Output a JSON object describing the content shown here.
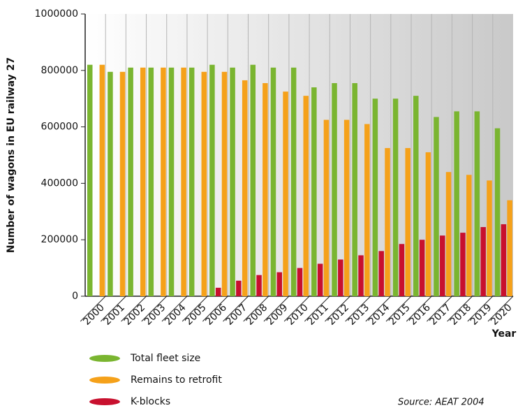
{
  "chart_data": {
    "type": "bar",
    "ylabel": "Number of wagons in EU railway 27",
    "xlabel": "Year",
    "source": "Source: AEAT 2004",
    "categories": [
      "2000",
      "2001",
      "2002",
      "2003",
      "2004",
      "2005",
      "2006",
      "2007",
      "2008",
      "2009",
      "2010",
      "2011",
      "2012",
      "2013",
      "2014",
      "2015",
      "2016",
      "2017",
      "2018",
      "2019",
      "2020"
    ],
    "series": [
      {
        "name": "Total fleet size",
        "color": "#7ab530",
        "values": [
          820000,
          795000,
          810000,
          810000,
          810000,
          810000,
          820000,
          810000,
          820000,
          810000,
          810000,
          740000,
          755000,
          755000,
          700000,
          700000,
          710000,
          635000,
          655000,
          655000,
          595000
        ]
      },
      {
        "name": "K-blocks",
        "color": "#c8102e",
        "values": [
          0,
          0,
          0,
          0,
          0,
          0,
          30000,
          55000,
          75000,
          85000,
          100000,
          115000,
          130000,
          145000,
          160000,
          185000,
          200000,
          215000,
          225000,
          245000,
          255000
        ]
      },
      {
        "name": "Remains to retrofit",
        "color": "#f5a11a",
        "values": [
          820000,
          795000,
          810000,
          810000,
          810000,
          795000,
          795000,
          765000,
          755000,
          725000,
          710000,
          625000,
          625000,
          610000,
          525000,
          525000,
          510000,
          440000,
          430000,
          410000,
          340000
        ]
      }
    ],
    "legend_order": [
      0,
      2,
      1
    ],
    "ylim": [
      0,
      1000000
    ],
    "yticks": [
      0,
      200000,
      400000,
      600000,
      800000,
      1000000
    ],
    "grid": true
  }
}
